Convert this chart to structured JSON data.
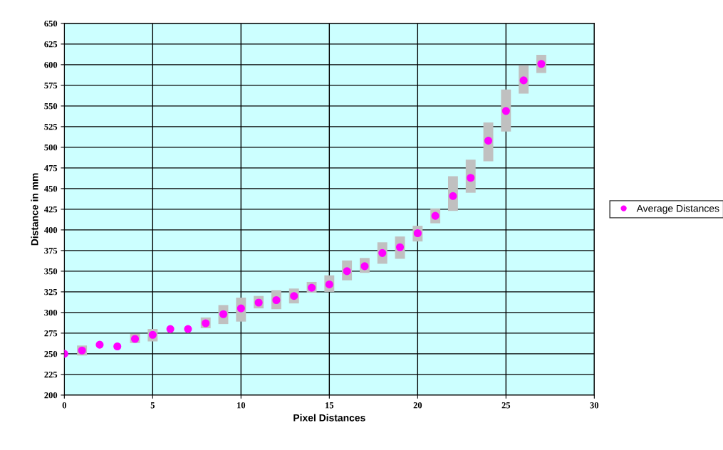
{
  "chart_data": {
    "type": "scatter",
    "xlabel": "Pixel Distances",
    "ylabel": "Distance in mm",
    "x": [
      0,
      1,
      2,
      3,
      4,
      5,
      6,
      7,
      8,
      9,
      10,
      11,
      12,
      13,
      14,
      15,
      16,
      17,
      18,
      19,
      20,
      21,
      22,
      23,
      24,
      25,
      26,
      27
    ],
    "series": [
      {
        "name": "Average Distances",
        "color": "#ff00ff",
        "values": [
          250,
          254,
          261,
          259,
          268,
          273,
          280,
          280,
          287,
          298,
          305,
          312,
          315,
          320,
          330,
          334,
          350,
          356,
          372,
          379,
          396,
          417,
          441,
          463,
          508,
          544,
          581,
          601
        ],
        "errors": [
          null,
          [
            248,
            260
          ],
          null,
          null,
          [
            263,
            274
          ],
          [
            265,
            280
          ],
          null,
          null,
          [
            281,
            294
          ],
          [
            286,
            309
          ],
          [
            289,
            318
          ],
          [
            305,
            320
          ],
          [
            304,
            327
          ],
          [
            311,
            329
          ],
          [
            324,
            337
          ],
          [
            325,
            345
          ],
          [
            339,
            363
          ],
          [
            348,
            366
          ],
          [
            359,
            385
          ],
          [
            365,
            392
          ],
          [
            386,
            405
          ],
          [
            408,
            426
          ],
          [
            423,
            465
          ],
          [
            445,
            485
          ],
          [
            483,
            530
          ],
          [
            519,
            570
          ],
          [
            565,
            599
          ],
          [
            590,
            612
          ]
        ]
      }
    ],
    "xlim": [
      0,
      30
    ],
    "xticks": [
      0,
      5,
      10,
      15,
      20,
      25,
      30
    ],
    "ylim": [
      200,
      650
    ],
    "yticks": [
      200,
      225,
      250,
      275,
      300,
      325,
      350,
      375,
      400,
      425,
      450,
      475,
      500,
      525,
      550,
      575,
      600,
      625,
      650
    ],
    "grid": true,
    "legend": "right",
    "marker": "circle"
  }
}
